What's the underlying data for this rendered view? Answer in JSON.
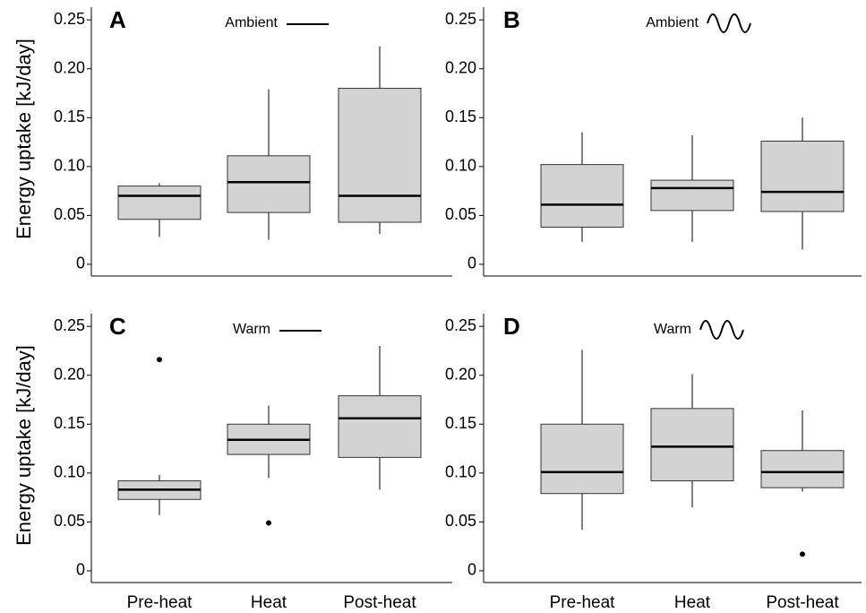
{
  "chart_data": [
    {
      "type": "box",
      "panel": "A",
      "legend": "Ambient",
      "legend_symbol": "line",
      "ylabel": "Energy uptake [kJ/day]",
      "stats": {
        "min": [
          0.028,
          0.025,
          0.031
        ],
        "q1": [
          0.046,
          0.053,
          0.043
        ],
        "median": [
          0.07,
          0.084,
          0.07
        ],
        "q3": [
          0.08,
          0.111,
          0.18
        ],
        "max": [
          0.083,
          0.179,
          0.223
        ]
      },
      "outliers": [
        null,
        null,
        null
      ],
      "color": "#d3d3d3",
      "ylim": [
        -0.012,
        0.263
      ],
      "yticks": [
        0,
        0.05,
        {
          "value": 0.1,
          "label": "0.10"
        },
        0.15,
        {
          "value": 0.2,
          "label": "0.20"
        },
        0.25
      ]
    },
    {
      "type": "box",
      "panel": "B",
      "legend": "Ambient",
      "legend_symbol": "wave",
      "stats": {
        "min": [
          0.023,
          0.023,
          0.015
        ],
        "q1": [
          0.038,
          0.055,
          0.054
        ],
        "median": [
          0.061,
          0.078,
          0.074
        ],
        "q3": [
          0.102,
          0.086,
          0.126
        ],
        "max": [
          0.135,
          0.132,
          0.15
        ]
      },
      "outliers": [
        null,
        null,
        null
      ],
      "color": "#d3d3d3",
      "ylim": [
        -0.012,
        0.263
      ],
      "yticks": [
        0,
        0.05,
        {
          "value": 0.1,
          "label": "0.10"
        },
        0.15,
        {
          "value": 0.2,
          "label": "0.20"
        },
        0.25
      ]
    },
    {
      "type": "box",
      "panel": "C",
      "legend": "Warm",
      "legend_symbol": "line",
      "ylabel": "Energy uptake [kJ/day]",
      "categories": [
        "Pre-heat",
        "Heat",
        "Post-heat"
      ],
      "stats": {
        "min": [
          0.057,
          0.095,
          0.083
        ],
        "q1": [
          0.073,
          0.119,
          0.116
        ],
        "median": [
          0.083,
          0.134,
          0.156
        ],
        "q3": [
          0.092,
          0.15,
          0.179
        ],
        "max": [
          0.098,
          0.169,
          0.23
        ]
      },
      "outliers": [
        0.216,
        0.049,
        null
      ],
      "color": "#d3d3d3",
      "ylim": [
        -0.012,
        0.263
      ],
      "yticks": [
        0,
        0.05,
        {
          "value": 0.1,
          "label": "0.10"
        },
        0.15,
        {
          "value": 0.2,
          "label": "0.20"
        },
        0.25
      ]
    },
    {
      "type": "box",
      "panel": "D",
      "legend": "Warm",
      "legend_symbol": "wave",
      "categories": [
        "Pre-heat",
        "Heat",
        "Post-heat"
      ],
      "stats": {
        "min": [
          0.042,
          0.065,
          0.081
        ],
        "q1": [
          0.079,
          0.092,
          0.085
        ],
        "median": [
          0.101,
          0.127,
          0.101
        ],
        "q3": [
          0.15,
          0.166,
          0.123
        ],
        "max": [
          0.226,
          0.201,
          0.164
        ]
      },
      "outliers": [
        null,
        null,
        0.017
      ],
      "color": "#d3d3d3",
      "ylim": [
        -0.012,
        0.263
      ],
      "yticks": [
        0,
        0.05,
        {
          "value": 0.1,
          "label": "0.10"
        },
        0.15,
        {
          "value": 0.2,
          "label": "0.20"
        },
        0.25
      ]
    }
  ]
}
